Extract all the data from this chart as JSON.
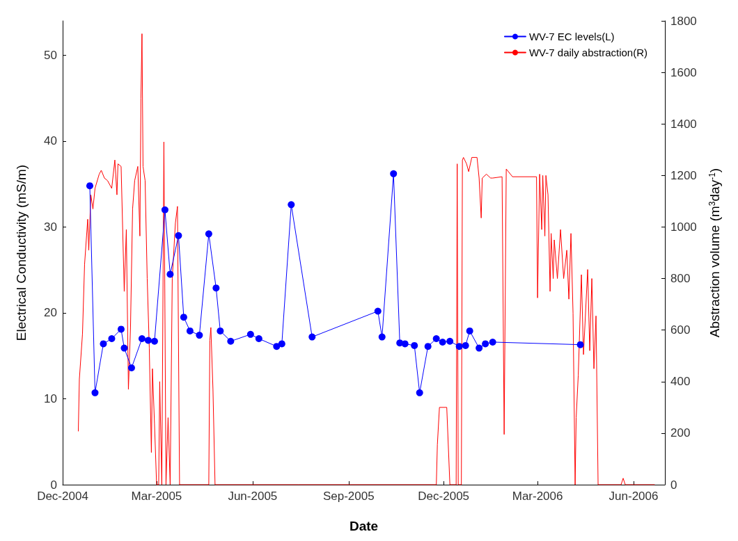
{
  "chart_data": {
    "type": "line",
    "xlabel": "Date",
    "ylabel": "Electrical Conductivity (mS/m)",
    "y2label": "Abstraction volume (m$^{3}$day$^{-1}$)",
    "xlim": [
      "2004-12-01",
      "2006-07-01"
    ],
    "xticks": [
      {
        "value": "2004-12-01",
        "label": "Dec-2004"
      },
      {
        "value": "2005-03-01",
        "label": "Mar-2005"
      },
      {
        "value": "2005-06-01",
        "label": "Jun-2005"
      },
      {
        "value": "2005-09-01",
        "label": "Sep-2005"
      },
      {
        "value": "2005-12-01",
        "label": "Dec-2005"
      },
      {
        "value": "2006-03-01",
        "label": "Mar-2006"
      },
      {
        "value": "2006-06-01",
        "label": "Jun-2006"
      }
    ],
    "ylim": [
      0,
      54
    ],
    "yticks": [
      0,
      10,
      20,
      30,
      40,
      50
    ],
    "y2lim": [
      0,
      1800
    ],
    "y2ticks": [
      0,
      200,
      400,
      600,
      800,
      1000,
      1200,
      1400,
      1600,
      1800
    ],
    "grid": false,
    "legend": "top right",
    "series": [
      {
        "name": "WV-7 EC levels(L)",
        "color": "#0000ff",
        "marker": "circle",
        "line_style": "solid",
        "x": [
          "2004-12-27",
          "2005-01-01",
          "2005-01-09",
          "2005-01-17",
          "2005-01-26",
          "2005-01-29",
          "2005-02-05",
          "2005-02-15",
          "2005-02-21",
          "2005-02-27",
          "2005-03-09",
          "2005-03-14",
          "2005-03-22",
          "2005-03-27",
          "2005-04-02",
          "2005-04-11",
          "2005-04-20",
          "2005-04-27",
          "2005-05-01",
          "2005-05-11",
          "2005-05-30",
          "2005-06-07",
          "2005-06-24",
          "2005-06-29",
          "2005-07-08",
          "2005-07-28",
          "2005-09-29",
          "2005-10-03",
          "2005-10-14",
          "2005-10-20",
          "2005-10-25",
          "2005-11-03",
          "2005-11-08",
          "2005-11-16",
          "2005-11-24",
          "2005-11-30",
          "2005-12-07",
          "2005-12-16",
          "2005-12-22",
          "2005-12-26",
          "2006-01-04",
          "2006-01-10",
          "2006-01-17",
          "2006-04-11"
        ],
        "values": [
          34.8,
          10.7,
          16.4,
          17.0,
          18.1,
          15.9,
          13.6,
          17.0,
          16.8,
          16.7,
          32.0,
          24.5,
          29.0,
          19.5,
          17.9,
          17.4,
          29.2,
          22.9,
          17.9,
          16.7,
          17.5,
          17.0,
          16.1,
          16.4,
          32.6,
          17.2,
          20.2,
          17.2,
          36.2,
          16.5,
          16.4,
          16.2,
          10.7,
          16.1,
          17.0,
          16.6,
          16.7,
          16.1,
          16.2,
          17.9,
          15.9,
          16.4,
          16.6,
          16.3
        ]
      },
      {
        "name": "WV-7 daily abstraction(R)",
        "color": "#ff0000",
        "marker": "none",
        "line_style": "solid",
        "axis": "y2",
        "x": [
          "2004-12-16",
          "2004-12-17",
          "2004-12-20",
          "2004-12-22",
          "2004-12-25",
          "2004-12-26",
          "2004-12-28",
          "2004-12-30",
          "2005-01-01",
          "2005-01-05",
          "2005-01-07",
          "2005-01-10",
          "2005-01-13",
          "2005-01-17",
          "2005-01-20",
          "2005-01-22",
          "2005-01-23",
          "2005-01-26",
          "2005-01-29",
          "2005-01-31",
          "2005-02-02",
          "2005-02-04",
          "2005-02-06",
          "2005-02-08",
          "2005-02-11",
          "2005-02-13",
          "2005-02-14",
          "2005-02-15",
          "2005-02-16",
          "2005-02-18",
          "2005-02-20",
          "2005-02-22",
          "2005-02-24",
          "2005-02-25",
          "2005-02-27",
          "2005-03-01",
          "2005-03-03",
          "2005-03-04",
          "2005-03-06",
          "2005-03-08",
          "2005-03-10",
          "2005-03-12",
          "2005-03-14",
          "2005-03-16",
          "2005-03-19",
          "2005-03-21",
          "2005-03-23",
          "2005-04-20",
          "2005-04-21",
          "2005-04-22",
          "2005-04-24",
          "2005-04-26",
          "2005-07-15",
          "2005-09-01",
          "2005-11-24",
          "2005-11-25",
          "2005-11-27",
          "2005-12-04",
          "2005-12-07",
          "2005-12-13",
          "2005-12-14",
          "2005-12-15",
          "2005-12-18",
          "2005-12-19",
          "2005-12-20",
          "2005-12-23",
          "2005-12-25",
          "2005-12-28",
          "2006-01-02",
          "2006-01-04",
          "2006-01-06",
          "2006-01-07",
          "2006-01-11",
          "2006-01-15",
          "2006-01-17",
          "2006-01-26",
          "2006-01-28",
          "2006-01-30",
          "2006-02-05",
          "2006-02-28",
          "2006-03-01",
          "2006-03-03",
          "2006-03-05",
          "2006-03-06",
          "2006-03-08",
          "2006-03-09",
          "2006-03-11",
          "2006-03-13",
          "2006-03-14",
          "2006-03-16",
          "2006-03-17",
          "2006-03-20",
          "2006-03-23",
          "2006-03-26",
          "2006-03-29",
          "2006-03-31",
          "2006-04-02",
          "2006-04-04",
          "2006-04-06",
          "2006-04-07",
          "2006-04-09",
          "2006-04-12",
          "2006-04-14",
          "2006-04-18",
          "2006-04-20",
          "2006-04-22",
          "2006-04-24",
          "2006-04-26",
          "2006-04-28",
          "2006-05-20",
          "2006-05-22",
          "2006-05-24",
          "2006-06-21"
        ],
        "values": [
          208,
          410,
          585,
          855,
          1030,
          910,
          1125,
          1070,
          1150,
          1205,
          1220,
          1190,
          1180,
          1150,
          1260,
          1125,
          1245,
          1235,
          750,
          990,
          370,
          610,
          1070,
          1180,
          1235,
          965,
          1500,
          1750,
          1235,
          1180,
          800,
          530,
          125,
          450,
          235,
          0,
          0,
          400,
          0,
          1330,
          0,
          260,
          0,
          800,
          1015,
          1080,
          0,
          0,
          560,
          610,
          370,
          0,
          0,
          0,
          0,
          155,
          300,
          300,
          0,
          0,
          1245,
          0,
          0,
          1260,
          1270,
          1245,
          1215,
          1270,
          1270,
          1190,
          1035,
          1190,
          1205,
          1190,
          1190,
          1195,
          195,
          1225,
          1195,
          1195,
          725,
          1205,
          990,
          1200,
          965,
          1200,
          1125,
          750,
          975,
          800,
          950,
          800,
          990,
          800,
          910,
          720,
          975,
          665,
          0,
          260,
          425,
          815,
          505,
          835,
          520,
          800,
          450,
          655,
          0,
          0,
          25,
          0,
          0
        ]
      }
    ]
  }
}
